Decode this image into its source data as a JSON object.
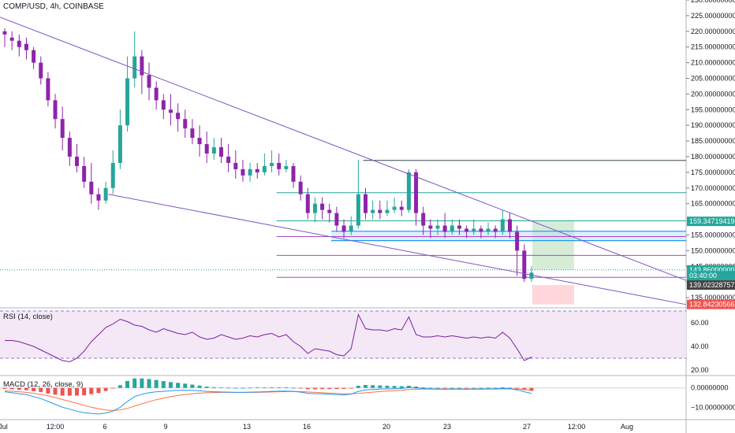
{
  "header": {
    "title": "COMP/USD, 4h, COINBASE"
  },
  "colors": {
    "up": "#26a69a",
    "down": "#8e24aa",
    "trendline": "#7e57c2",
    "blue_line": "#2196f3",
    "teal_line": "#26a69a",
    "rsi_line": "#7b1fa2",
    "macd_line": "#2196f3",
    "signal_line": "#ff7043",
    "hist_up": "#26a69a",
    "hist_down": "#ef5350",
    "target_zone": "#c8e6c9",
    "stop_zone": "#ffcdd2"
  },
  "chart_data": [
    {
      "type": "candlestick",
      "title": "COMP/USD, 4h, COINBASE",
      "ylim": [
        132,
        230
      ],
      "y_ticks": [
        "230.00000000",
        "225.00000000",
        "220.00000000",
        "215.00000000",
        "210.00000000",
        "205.00000000",
        "200.00000000",
        "195.00000000",
        "190.00000000",
        "185.00000000",
        "180.00000000",
        "175.00000000",
        "170.00000000",
        "165.00000000",
        "155.00000000",
        "150.00000000",
        "145.00000000",
        "140",
        "135.00000000"
      ],
      "x_ticks": [
        "Jul",
        "12:00",
        "6",
        "9",
        "13",
        "16",
        "20",
        "23",
        "27",
        "12:00",
        "Aug"
      ],
      "candles": [
        [
          220,
          219,
          221,
          215
        ],
        [
          218,
          217,
          220,
          214
        ],
        [
          217,
          215,
          219,
          212
        ],
        [
          216,
          214,
          218,
          211
        ],
        [
          214,
          210,
          215,
          208
        ],
        [
          210,
          205,
          212,
          203
        ],
        [
          205,
          198,
          207,
          196
        ],
        [
          198,
          192,
          200,
          189
        ],
        [
          192,
          186,
          196,
          182
        ],
        [
          186,
          180,
          188,
          177
        ],
        [
          180,
          177,
          184,
          175
        ],
        [
          177,
          172,
          180,
          170
        ],
        [
          172,
          168,
          178,
          165
        ],
        [
          168,
          166,
          170,
          163
        ],
        [
          166,
          170,
          172,
          165
        ],
        [
          170,
          178,
          182,
          168
        ],
        [
          178,
          190,
          195,
          176
        ],
        [
          190,
          205,
          212,
          188
        ],
        [
          205,
          212,
          220,
          202
        ],
        [
          212,
          206,
          214,
          200
        ],
        [
          206,
          202,
          210,
          198
        ],
        [
          202,
          198,
          204,
          195
        ],
        [
          198,
          195,
          200,
          192
        ],
        [
          195,
          194,
          200,
          190
        ],
        [
          194,
          192,
          197,
          188
        ],
        [
          192,
          189,
          195,
          186
        ],
        [
          189,
          186,
          192,
          184
        ],
        [
          186,
          184,
          190,
          180
        ],
        [
          184,
          181,
          188,
          178
        ],
        [
          181,
          183,
          186,
          179
        ],
        [
          183,
          180,
          186,
          178
        ],
        [
          180,
          178,
          184,
          175
        ],
        [
          178,
          176,
          182,
          173
        ],
        [
          176,
          174,
          179,
          172
        ],
        [
          174,
          176,
          178,
          172
        ],
        [
          176,
          175,
          178,
          173
        ],
        [
          175,
          177,
          181,
          174
        ],
        [
          177,
          178,
          182,
          175
        ],
        [
          178,
          176,
          181,
          174
        ],
        [
          176,
          177,
          179,
          175
        ],
        [
          177,
          172,
          178,
          170
        ],
        [
          172,
          168,
          174,
          166
        ],
        [
          168,
          162,
          170,
          160
        ],
        [
          162,
          165,
          167,
          159
        ],
        [
          165,
          163,
          167,
          160
        ],
        [
          163,
          162,
          165,
          159
        ],
        [
          162,
          158,
          164,
          156
        ],
        [
          158,
          156,
          160,
          154
        ],
        [
          156,
          158,
          161,
          155
        ],
        [
          158,
          168,
          179,
          157
        ],
        [
          168,
          162,
          170,
          160
        ],
        [
          162,
          163,
          166,
          160
        ],
        [
          163,
          162,
          166,
          160
        ],
        [
          162,
          163,
          166,
          161
        ],
        [
          163,
          164,
          167,
          162
        ],
        [
          164,
          163,
          166,
          161
        ],
        [
          163,
          175,
          176,
          162
        ],
        [
          175,
          162,
          176,
          158
        ],
        [
          162,
          158,
          164,
          155
        ],
        [
          158,
          157,
          160,
          154
        ],
        [
          157,
          158,
          160,
          155
        ],
        [
          158,
          156,
          162,
          154
        ],
        [
          156,
          158,
          160,
          155
        ],
        [
          158,
          157,
          160,
          155
        ],
        [
          157,
          156,
          158,
          154
        ],
        [
          156,
          157,
          160,
          155
        ],
        [
          157,
          156,
          158,
          154
        ],
        [
          156,
          157,
          159,
          155
        ],
        [
          157,
          156,
          158,
          154
        ],
        [
          156,
          160,
          163,
          155
        ],
        [
          160,
          156,
          162,
          154
        ],
        [
          156,
          150,
          158,
          142
        ],
        [
          150,
          141,
          152,
          140
        ],
        [
          141,
          143,
          145,
          140
        ]
      ],
      "lines": [
        {
          "name": "upper_trend",
          "from": [
            0,
            224.5
          ],
          "to": [
            87,
            140.5
          ]
        },
        {
          "name": "lower_trend",
          "from": [
            15,
            168
          ],
          "to": [
            87,
            132.8
          ]
        },
        {
          "name": "resistance",
          "from": [
            50,
            178.8
          ],
          "to": [
            87,
            178.8
          ]
        },
        {
          "name": "teal_level",
          "from": [
            38,
            168.5
          ],
          "to": [
            87,
            168.5
          ]
        },
        {
          "name": "teal_level_2",
          "from": [
            38,
            159.5
          ],
          "to": [
            87,
            159.5
          ]
        },
        {
          "name": "purple_level",
          "from": [
            38,
            154.5
          ],
          "to": [
            87,
            154.5
          ]
        },
        {
          "name": "purple_level_2",
          "from": [
            38,
            148.5
          ],
          "to": [
            87,
            148.5
          ]
        },
        {
          "name": "purple_level_3",
          "from": [
            38,
            141.5
          ],
          "to": [
            87,
            141.5
          ]
        }
      ],
      "price_tags": [
        {
          "label": "159.34719419",
          "value": 159.35,
          "color": "#26a69a"
        },
        {
          "label": "143.86000000",
          "value": 143.86,
          "color": "#26a69a"
        },
        {
          "label": "03:40:00",
          "value": 142.0,
          "color": "#26a69a"
        },
        {
          "label": "139.02328757",
          "value": 139.02,
          "color": "#444444"
        },
        {
          "label": "132.84230566",
          "value": 132.84,
          "color": "#ef5350"
        }
      ]
    },
    {
      "type": "line",
      "title": "RSI (14, close)",
      "ylim": [
        16,
        72
      ],
      "y_ticks": [
        "60.00",
        "40.00",
        "20.00"
      ],
      "band": [
        30,
        70
      ],
      "values": [
        45,
        45,
        44,
        42,
        40,
        37,
        34,
        31,
        28,
        27,
        30,
        36,
        44,
        50,
        56,
        59,
        63,
        61,
        58,
        57,
        54,
        52,
        55,
        53,
        51,
        50,
        52,
        48,
        46,
        47,
        50,
        48,
        46,
        47,
        49,
        48,
        50,
        51,
        48,
        50,
        44,
        40,
        34,
        38,
        37,
        36,
        33,
        32,
        38,
        67,
        55,
        54,
        54,
        53,
        55,
        54,
        65,
        50,
        48,
        48,
        49,
        48,
        49,
        48,
        47,
        48,
        47,
        48,
        47,
        52,
        47,
        38,
        28,
        31
      ]
    },
    {
      "type": "line",
      "title": "MACD (12, 26, close, 9)",
      "ylim": [
        -16,
        6
      ],
      "y_ticks": [
        "0.00000000",
        "-10.00000000"
      ],
      "macd": [
        -2,
        -2.5,
        -3,
        -3.5,
        -4.5,
        -5.5,
        -7,
        -8.5,
        -10,
        -11,
        -12,
        -12.8,
        -13.2,
        -13.5,
        -13,
        -12,
        -10,
        -7,
        -4.5,
        -3.3,
        -2.5,
        -2,
        -1.8,
        -1.5,
        -1.3,
        -1.2,
        -1.3,
        -1.5,
        -1.8,
        -2,
        -2.1,
        -2.2,
        -2.3,
        -2.3,
        -2.2,
        -2.1,
        -2,
        -1.8,
        -1.7,
        -1.6,
        -1.8,
        -2.2,
        -2.8,
        -3,
        -3.1,
        -3.3,
        -3.5,
        -3.6,
        -3.2,
        -1.8,
        -1,
        -0.8,
        -0.6,
        -0.5,
        -0.4,
        -0.3,
        0.2,
        0,
        -0.3,
        -0.5,
        -0.6,
        -0.7,
        -0.6,
        -0.6,
        -0.7,
        -0.6,
        -0.6,
        -0.5,
        -0.5,
        -0.2,
        -0.4,
        -1,
        -2,
        -2.8
      ],
      "signal": [
        -1.5,
        -1.8,
        -2,
        -2.3,
        -2.8,
        -3.4,
        -4.1,
        -5,
        -6,
        -7,
        -8,
        -9,
        -10,
        -10.8,
        -11.4,
        -11.7,
        -11.4,
        -10.6,
        -9.4,
        -8.2,
        -7.1,
        -6.1,
        -5.3,
        -4.5,
        -3.9,
        -3.4,
        -3,
        -2.7,
        -2.5,
        -2.4,
        -2.3,
        -2.3,
        -2.3,
        -2.3,
        -2.3,
        -2.3,
        -2.2,
        -2.1,
        -2,
        -1.9,
        -1.9,
        -1.9,
        -2.1,
        -2.3,
        -2.5,
        -2.7,
        -2.9,
        -3.1,
        -3.1,
        -2.9,
        -2.5,
        -2.2,
        -1.9,
        -1.6,
        -1.4,
        -1.2,
        -0.9,
        -0.7,
        -0.6,
        -0.6,
        -0.6,
        -0.6,
        -0.6,
        -0.6,
        -0.6,
        -0.6,
        -0.6,
        -0.6,
        -0.6,
        -0.5,
        -0.5,
        -0.6,
        -0.9,
        -1.3
      ]
    }
  ]
}
